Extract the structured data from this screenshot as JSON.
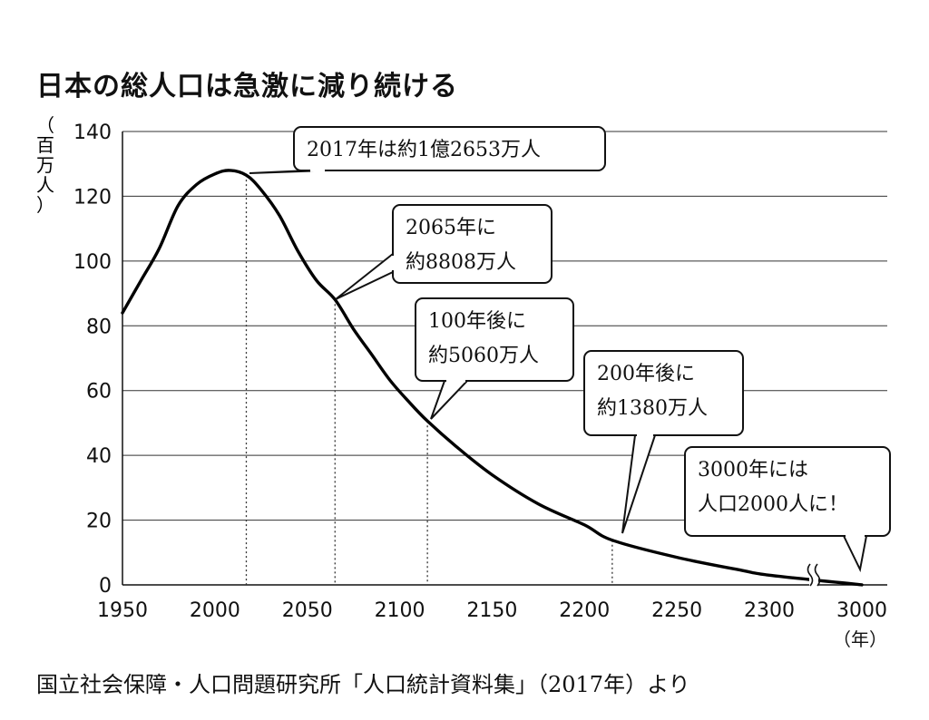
{
  "title": "日本の総人口は急激に減り続ける",
  "source": "国立社会保障・人口問題研究所「人口統計資料集」（2017年）より",
  "chart_data": {
    "type": "line",
    "ylabel": "（百万人）",
    "xunit": "（年）",
    "xlim": [
      1950,
      3000
    ],
    "ylim": [
      0,
      140
    ],
    "x_axis_break": 2300,
    "yticks": [
      0,
      20,
      40,
      60,
      80,
      100,
      120,
      140
    ],
    "xtick_labels": [
      "1950",
      "2000",
      "2050",
      "2100",
      "2150",
      "2200",
      "2250",
      "2300",
      "3000"
    ],
    "grid": true,
    "series": [
      {
        "points": [
          [
            1950,
            84
          ],
          [
            1960,
            94
          ],
          [
            1970,
            104
          ],
          [
            1980,
            117
          ],
          [
            1990,
            123.6
          ],
          [
            2000,
            126.9
          ],
          [
            2008,
            128
          ],
          [
            2017,
            126.5
          ],
          [
            2025,
            122
          ],
          [
            2035,
            114
          ],
          [
            2045,
            103
          ],
          [
            2055,
            94
          ],
          [
            2065,
            88.08
          ],
          [
            2075,
            79
          ],
          [
            2085,
            71
          ],
          [
            2095,
            63
          ],
          [
            2105,
            56.5
          ],
          [
            2115,
            50.6
          ],
          [
            2130,
            43
          ],
          [
            2150,
            34
          ],
          [
            2175,
            25
          ],
          [
            2200,
            18.5
          ],
          [
            2215,
            13.8
          ],
          [
            2250,
            8.5
          ],
          [
            2285,
            4.5
          ],
          [
            2300,
            3
          ],
          [
            3000,
            0.02
          ]
        ]
      }
    ],
    "callouts": [
      {
        "lines": [
          "2017年は約1億2653万人"
        ],
        "x": 2017,
        "y": 126.53
      },
      {
        "lines": [
          "2065年に",
          "約8808万人"
        ],
        "x": 2065,
        "y": 88.08
      },
      {
        "lines": [
          "100年後に",
          "約5060万人"
        ],
        "x": 2115,
        "y": 50.6
      },
      {
        "lines": [
          "200年後に",
          "約1380万人"
        ],
        "x": 2215,
        "y": 13.8
      },
      {
        "lines": [
          "3000年には",
          "人口2000人に！"
        ],
        "x": 3000,
        "y": 0.02
      }
    ]
  }
}
